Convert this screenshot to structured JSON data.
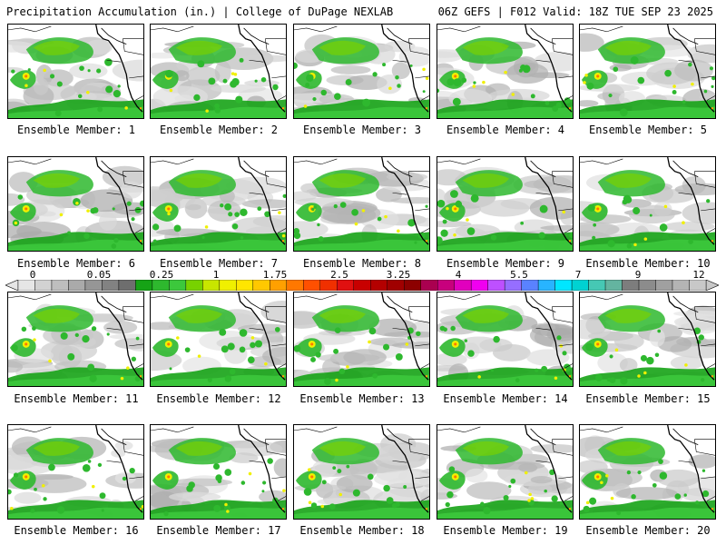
{
  "header": {
    "left_title": "Precipitation Accumulation (in.) | College of DuPage NEXLAB",
    "right_title": "06Z GEFS | F012 Valid: 18Z TUE SEP 23 2025"
  },
  "colorbar": {
    "tick_labels": [
      "0",
      "0.05",
      "0.25",
      "1",
      "1.75",
      "2.5",
      "3.25",
      "4",
      "5.5",
      "7",
      "9",
      "12"
    ],
    "colors": [
      "#e6e6e6",
      "#d2d2d2",
      "#bebebe",
      "#aaaaaa",
      "#969696",
      "#828282",
      "#6e6e6e",
      "#16a316",
      "#2eb82e",
      "#3cc83c",
      "#78d200",
      "#c8e600",
      "#f0f000",
      "#ffe600",
      "#ffc800",
      "#ffa000",
      "#ff7800",
      "#ff5000",
      "#f03000",
      "#e01010",
      "#c80000",
      "#b40000",
      "#a00000",
      "#8c0000",
      "#aa0050",
      "#c8007d",
      "#e100be",
      "#f000f0",
      "#be50ff",
      "#966eff",
      "#5a82ff",
      "#28b4ff",
      "#00e6ff",
      "#00d2d2",
      "#46c8b4",
      "#64b4a0",
      "#7d7d7d",
      "#8c8c8c",
      "#a0a0a0",
      "#b4b4b4",
      "#c8c8c8"
    ]
  },
  "members": [
    {
      "label": "Ensemble Member: 1"
    },
    {
      "label": "Ensemble Member: 2"
    },
    {
      "label": "Ensemble Member: 3"
    },
    {
      "label": "Ensemble Member: 4"
    },
    {
      "label": "Ensemble Member: 5"
    },
    {
      "label": "Ensemble Member: 6"
    },
    {
      "label": "Ensemble Member: 7"
    },
    {
      "label": "Ensemble Member: 8"
    },
    {
      "label": "Ensemble Member: 9"
    },
    {
      "label": "Ensemble Member: 10"
    },
    {
      "label": "Ensemble Member: 11"
    },
    {
      "label": "Ensemble Member: 12"
    },
    {
      "label": "Ensemble Member: 13"
    },
    {
      "label": "Ensemble Member: 14"
    },
    {
      "label": "Ensemble Member: 15"
    },
    {
      "label": "Ensemble Member: 16"
    },
    {
      "label": "Ensemble Member: 17"
    },
    {
      "label": "Ensemble Member: 18"
    },
    {
      "label": "Ensemble Member: 19"
    },
    {
      "label": "Ensemble Member: 20"
    }
  ]
}
